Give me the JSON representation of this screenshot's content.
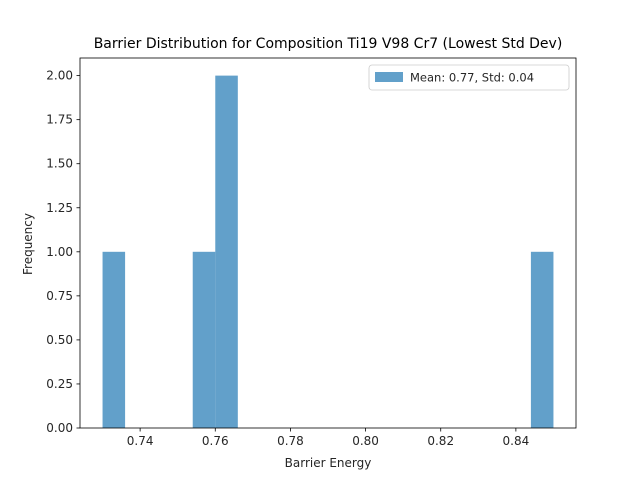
{
  "chart_data": {
    "type": "bar",
    "subtype": "histogram",
    "title": "Barrier Distribution for Composition Ti19 V98 Cr7 (Lowest Std Dev)",
    "xlabel": "Barrier Energy",
    "ylabel": "Frequency",
    "xlim": [
      0.724,
      0.856
    ],
    "ylim": [
      0,
      2.1
    ],
    "xticks": [
      0.74,
      0.76,
      0.78,
      0.8,
      0.82,
      0.84
    ],
    "xtick_labels": [
      "0.74",
      "0.76",
      "0.78",
      "0.80",
      "0.82",
      "0.84"
    ],
    "yticks": [
      0,
      0.25,
      0.5,
      0.75,
      1.0,
      1.25,
      1.5,
      1.75,
      2.0
    ],
    "ytick_labels": [
      "0.00",
      "0.25",
      "0.50",
      "0.75",
      "1.00",
      "1.25",
      "1.50",
      "1.75",
      "2.00"
    ],
    "bins": [
      {
        "x0": 0.73,
        "x1": 0.736,
        "count": 1
      },
      {
        "x0": 0.754,
        "x1": 0.76,
        "count": 1
      },
      {
        "x0": 0.76,
        "x1": 0.766,
        "count": 2
      },
      {
        "x0": 0.844,
        "x1": 0.85,
        "count": 1
      }
    ],
    "bar_color": "#1f77b4",
    "bar_opacity": 0.7,
    "legend": {
      "position": "upper-right",
      "entries": [
        {
          "label": "Mean: 0.77, Std: 0.04",
          "color": "#1f77b4"
        }
      ]
    },
    "grid": false
  }
}
